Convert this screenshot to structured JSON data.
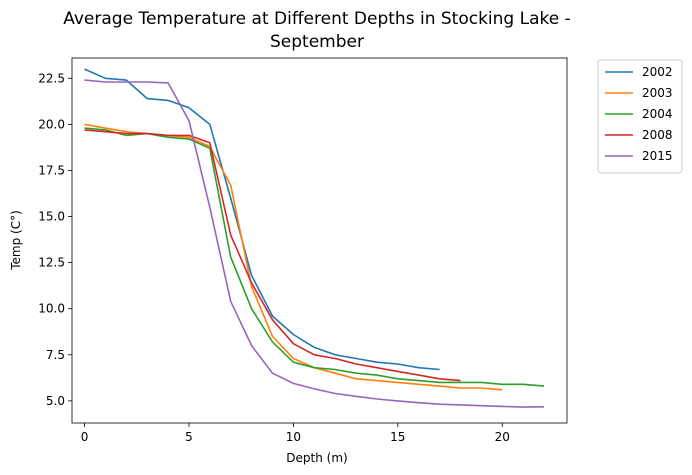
{
  "chart_data": {
    "type": "line",
    "title_line1": "Average Temperature at Different Depths in Stocking Lake -",
    "title_line2": "September",
    "xlabel": "Depth (m)",
    "ylabel": "Temp (C°)",
    "xlim": [
      -0.6,
      23.1
    ],
    "ylim": [
      3.8,
      23.6
    ],
    "xticks": [
      0,
      5,
      10,
      15,
      20
    ],
    "yticks": [
      5.0,
      7.5,
      10.0,
      12.5,
      15.0,
      17.5,
      20.0,
      22.5
    ],
    "legend_position": "outside-top-right",
    "grid": false,
    "series": [
      {
        "name": "2002",
        "color": "#1f77b4",
        "x": [
          0,
          1,
          2,
          3,
          4,
          5,
          6,
          7,
          8,
          9,
          10,
          11,
          12,
          13,
          14,
          15,
          16,
          17
        ],
        "y": [
          23.0,
          22.5,
          22.4,
          21.4,
          21.3,
          20.9,
          20.0,
          16.0,
          11.8,
          9.6,
          8.6,
          7.9,
          7.5,
          7.3,
          7.1,
          7.0,
          6.8,
          6.7
        ]
      },
      {
        "name": "2003",
        "color": "#ff7f0e",
        "x": [
          0,
          1,
          2,
          3,
          4,
          5,
          6,
          7,
          8,
          9,
          10,
          11,
          12,
          13,
          14,
          15,
          16,
          17,
          18,
          19,
          20
        ],
        "y": [
          20.0,
          19.8,
          19.6,
          19.5,
          19.4,
          19.3,
          18.8,
          16.7,
          11.2,
          8.5,
          7.3,
          6.8,
          6.5,
          6.2,
          6.1,
          6.0,
          5.9,
          5.8,
          5.7,
          5.7,
          5.6
        ]
      },
      {
        "name": "2004",
        "color": "#2ca02c",
        "x": [
          0,
          1,
          2,
          3,
          4,
          5,
          6,
          7,
          8,
          9,
          10,
          11,
          12,
          13,
          14,
          15,
          16,
          17,
          18,
          19,
          20,
          21,
          22
        ],
        "y": [
          19.8,
          19.7,
          19.4,
          19.5,
          19.3,
          19.2,
          18.7,
          12.8,
          10.0,
          8.2,
          7.1,
          6.8,
          6.7,
          6.5,
          6.4,
          6.2,
          6.1,
          6.0,
          6.0,
          6.0,
          5.9,
          5.9,
          5.8
        ]
      },
      {
        "name": "2008",
        "color": "#d62728",
        "x": [
          0,
          1,
          2,
          3,
          4,
          5,
          6,
          7,
          8,
          9,
          10,
          11,
          12,
          13,
          14,
          15,
          16,
          17,
          18
        ],
        "y": [
          19.7,
          19.6,
          19.5,
          19.5,
          19.4,
          19.4,
          19.0,
          14.0,
          11.4,
          9.4,
          8.1,
          7.5,
          7.3,
          7.0,
          6.8,
          6.6,
          6.4,
          6.2,
          6.1
        ]
      },
      {
        "name": "2015",
        "color": "#9467bd",
        "x": [
          0,
          1,
          2,
          3,
          4,
          5,
          6,
          7,
          8,
          9,
          10,
          11,
          12,
          13,
          14,
          15,
          16,
          17,
          18,
          19,
          20,
          21,
          22
        ],
        "y": [
          22.4,
          22.3,
          22.3,
          22.3,
          22.25,
          20.2,
          15.5,
          10.4,
          8.0,
          6.5,
          5.95,
          5.65,
          5.4,
          5.25,
          5.1,
          5.0,
          4.9,
          4.82,
          4.78,
          4.74,
          4.7,
          4.66,
          4.68
        ]
      }
    ]
  }
}
